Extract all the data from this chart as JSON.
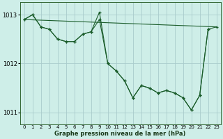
{
  "title": "Graphe pression niveau de la mer (hPa)",
  "bg_color": "#ceeee8",
  "grid_color": "#aacccc",
  "line_color": "#1a5c2a",
  "xlim": [
    -0.5,
    23.5
  ],
  "ylim": [
    1010.75,
    1013.25
  ],
  "yticks": [
    1011,
    1012,
    1013
  ],
  "xticks": [
    0,
    1,
    2,
    3,
    4,
    5,
    6,
    7,
    8,
    9,
    10,
    11,
    12,
    13,
    14,
    15,
    16,
    17,
    18,
    19,
    20,
    21,
    22,
    23
  ],
  "series1_x": [
    0,
    1,
    2,
    3,
    4,
    5,
    6,
    7,
    8,
    9,
    10,
    11,
    12,
    13,
    14,
    15,
    16,
    17,
    18,
    19,
    20,
    21,
    22
  ],
  "series1_y": [
    1012.9,
    1013.0,
    1012.75,
    1012.7,
    1012.5,
    1012.45,
    1012.45,
    1012.6,
    1012.65,
    1013.05,
    1012.0,
    1011.85,
    1011.65,
    1011.3,
    1011.55,
    1011.5,
    1011.4,
    1011.45,
    1011.4,
    1011.3,
    1011.05,
    1011.35,
    1012.7
  ],
  "series2_x": [
    0,
    1,
    2,
    3,
    4,
    5,
    6,
    7,
    8,
    9,
    10,
    11,
    12,
    13,
    14,
    15,
    16,
    17,
    18,
    19,
    20,
    21,
    22,
    23
  ],
  "series2_y": [
    1012.9,
    1013.0,
    1012.75,
    1012.7,
    1012.5,
    1012.45,
    1012.45,
    1012.6,
    1012.65,
    1012.9,
    1012.0,
    1011.85,
    1011.65,
    1011.3,
    1011.55,
    1011.5,
    1011.4,
    1011.45,
    1011.4,
    1011.3,
    1011.05,
    1011.35,
    1012.7,
    1012.75
  ],
  "series3_x": [
    0,
    23
  ],
  "series3_y": [
    1012.9,
    1012.75
  ],
  "figwidth": 3.2,
  "figheight": 2.0,
  "dpi": 100
}
